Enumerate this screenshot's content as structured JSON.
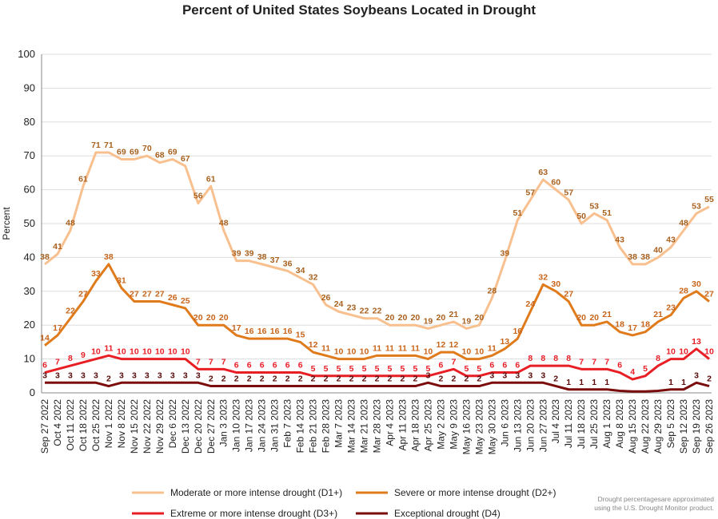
{
  "chart_data": {
    "type": "line",
    "title": "Percent of United States Soybeans Located in Drought",
    "y_label": "Percent",
    "categories": [
      "Sep 27 2022",
      "Oct 4 2022",
      "Oct 11 2022",
      "Oct 18 2022",
      "Oct 25 2022",
      "Nov 1 2022",
      "Nov 8 2022",
      "Nov 15 2022",
      "Nov 22 2022",
      "Nov 29 2022",
      "Dec 6 2022",
      "Dec 13 2022",
      "Dec 20 2022",
      "Dec 27 2022",
      "Jan 3 2023",
      "Jan 10 2023",
      "Jan 17 2023",
      "Jan 24 2023",
      "Jan 31 2023",
      "Feb 7 2023",
      "Feb 14 2023",
      "Feb 21 2023",
      "Feb 28 2023",
      "Mar 7 2023",
      "Mar 14 2023",
      "Mar 21 2023",
      "Mar 28 2023",
      "Apr 4 2023",
      "Apr 11 2023",
      "Apr 18 2023",
      "Apr 25 2023",
      "May 2 2023",
      "May 9 2023",
      "May 16 2023",
      "May 23 2023",
      "May 30 2023",
      "Jun 6 2023",
      "Jun 13 2023",
      "Jun 20 2023",
      "Jun 27 2023",
      "Jul 4 2023",
      "Jul 11 2023",
      "Jul 18 2023",
      "Jul 25 2023",
      "Aug 1 2023",
      "Aug 8 2023",
      "Aug 15 2023",
      "Aug 22 2023",
      "Aug 29 2023",
      "Sep 5 2023",
      "Sep 12 2023",
      "Sep 19 2023",
      "Sep 26 2023"
    ],
    "series": [
      {
        "name": "Moderate or more intense drought (D1+)",
        "color": "#f9c08f",
        "values": [
          38,
          41,
          48,
          61,
          71,
          71,
          69,
          69,
          70,
          68,
          69,
          67,
          56,
          61,
          48,
          39,
          39,
          38,
          37,
          36,
          34,
          32,
          26,
          24,
          23,
          22,
          22,
          20,
          20,
          20,
          19,
          20,
          21,
          19,
          20,
          28,
          39,
          51,
          57,
          63,
          60,
          57,
          50,
          53,
          51,
          43,
          38,
          38,
          40,
          43,
          48,
          53,
          55
        ]
      },
      {
        "name": "Severe or more intense drought (D2+)",
        "color": "#e07b1c",
        "values": [
          14,
          17,
          22,
          27,
          33,
          38,
          31,
          27,
          27,
          27,
          26,
          25,
          20,
          20,
          20,
          17,
          16,
          16,
          16,
          16,
          15,
          12,
          11,
          10,
          10,
          10,
          11,
          11,
          11,
          11,
          10,
          12,
          12,
          10,
          10,
          11,
          13,
          16,
          24,
          32,
          30,
          27,
          20,
          20,
          21,
          18,
          17,
          18,
          21,
          23,
          28,
          30,
          27
        ]
      },
      {
        "name": "Extreme or more intense drought (D3+)",
        "color": "#e81e25",
        "values": [
          6,
          7,
          8,
          9,
          10,
          11,
          10,
          10,
          10,
          10,
          10,
          10,
          7,
          7,
          7,
          6,
          6,
          6,
          6,
          6,
          6,
          5,
          5,
          5,
          5,
          5,
          5,
          5,
          5,
          5,
          5,
          6,
          7,
          5,
          5,
          6,
          6,
          6,
          8,
          8,
          8,
          8,
          7,
          7,
          7,
          6,
          4,
          5,
          8,
          10,
          10,
          13,
          10
        ]
      },
      {
        "name": "Exceptional drought (D4)",
        "color": "#7a0c0c",
        "values": [
          3,
          3,
          3,
          3,
          3,
          2,
          3,
          3,
          3,
          3,
          3,
          3,
          3,
          2,
          2,
          2,
          2,
          2,
          2,
          2,
          2,
          2,
          2,
          2,
          2,
          2,
          2,
          2,
          2,
          2,
          3,
          2,
          2,
          2,
          2,
          3,
          3,
          3,
          3,
          3,
          2,
          1,
          1,
          1,
          1,
          0.6,
          0.4,
          0.4,
          0.6,
          1,
          1,
          3,
          2
        ],
        "value_labels": [
          "3",
          "3",
          "3",
          "3",
          "3",
          "2",
          "3",
          "3",
          "3",
          "3",
          "3",
          "3",
          "3",
          "2",
          "2",
          "2",
          "2",
          "2",
          "2",
          "2",
          "2",
          "2",
          "2",
          "2",
          "2",
          "2",
          "2",
          "2",
          "2",
          "2",
          "3",
          "2",
          "2",
          "2",
          "2",
          "3",
          "3",
          "3",
          "3",
          "3",
          "2",
          "1",
          "1",
          "1",
          "1",
          null,
          null,
          null,
          null,
          "1",
          "1",
          "3",
          "2"
        ]
      }
    ],
    "ylim": [
      0,
      100
    ],
    "yticks": [
      0,
      10,
      20,
      30,
      40,
      50,
      60,
      70,
      80,
      90,
      100
    ],
    "grid": true,
    "note": [
      "Drought percentagesare approximated",
      "using the U.S. Drought Monitor product."
    ]
  }
}
